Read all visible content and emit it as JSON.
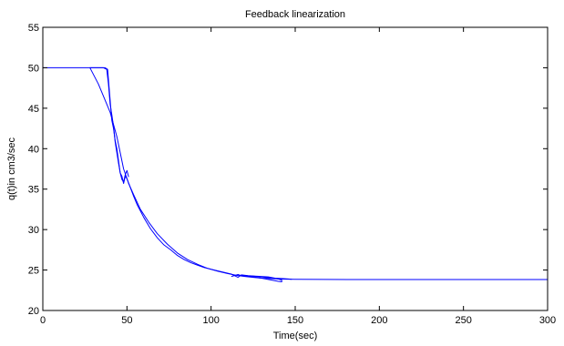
{
  "chart_data": {
    "type": "line",
    "title": "Feedback linearization",
    "xlabel": "Time(sec)",
    "ylabel": "q(t)in cm3/sec",
    "xlim": [
      0,
      300
    ],
    "ylim": [
      20,
      55
    ],
    "xticks": [
      0,
      50,
      100,
      150,
      200,
      250,
      300
    ],
    "yticks": [
      20,
      25,
      30,
      35,
      40,
      45,
      50,
      55
    ],
    "grid": false,
    "line_color": "#0000ff",
    "series": [
      {
        "x": [
          0,
          28,
          33,
          37,
          40,
          42,
          44,
          46,
          48,
          51,
          54,
          58,
          63,
          68,
          74,
          80,
          86,
          92,
          98,
          104,
          110,
          115,
          120,
          125,
          130,
          135,
          140,
          145,
          150,
          200,
          250,
          300
        ],
        "y": [
          50,
          50,
          48,
          46,
          44.5,
          43,
          41.5,
          39.5,
          37.5,
          35.7,
          34.3,
          32.5,
          30.9,
          29.5,
          28.2,
          27.1,
          26.3,
          25.7,
          25.2,
          24.85,
          24.55,
          24.35,
          24.2,
          24.1,
          24.0,
          23.95,
          23.9,
          23.87,
          23.85,
          23.82,
          23.82,
          23.82
        ]
      },
      {
        "x": [
          28,
          36,
          38,
          39,
          40,
          41,
          42,
          43,
          44,
          45,
          46,
          47,
          48,
          49,
          50,
          52,
          54,
          56,
          60,
          64,
          68,
          72,
          76,
          80,
          84,
          88,
          92,
          96,
          100,
          104,
          108,
          112,
          114,
          116,
          118,
          122,
          126,
          130,
          134,
          138,
          142,
          146,
          148
        ],
        "y": [
          50,
          50,
          49.8,
          48,
          45.5,
          44.2,
          42.8,
          40.8,
          39.5,
          38.2,
          37.0,
          36.6,
          35.7,
          36.6,
          36.3,
          35.2,
          34.1,
          33.1,
          31.5,
          30.1,
          29.0,
          28.1,
          27.5,
          26.8,
          26.3,
          25.9,
          25.6,
          25.3,
          25.1,
          24.9,
          24.7,
          24.5,
          24.3,
          24.1,
          24.4,
          24.3,
          24.25,
          24.2,
          24.15,
          24.0,
          23.95,
          23.9,
          23.85
        ]
      },
      {
        "x": [
          28,
          37,
          38.5,
          40,
          41,
          42,
          43,
          44,
          45,
          46,
          47,
          48,
          49,
          50,
          51
        ],
        "y": [
          50,
          50,
          49.8,
          46,
          43.5,
          42.5,
          41,
          40,
          38.5,
          37,
          36.2,
          35.9,
          36.8,
          37.3,
          36.5
        ]
      },
      {
        "x": [
          112,
          116,
          118,
          125,
          130,
          135,
          140,
          142,
          142,
          140,
          135,
          130,
          125,
          120
        ],
        "y": [
          24.2,
          24.45,
          24.3,
          24.15,
          24.0,
          23.8,
          23.6,
          23.55,
          23.75,
          23.9,
          24.05,
          24.15,
          24.25,
          24.3
        ]
      }
    ]
  }
}
